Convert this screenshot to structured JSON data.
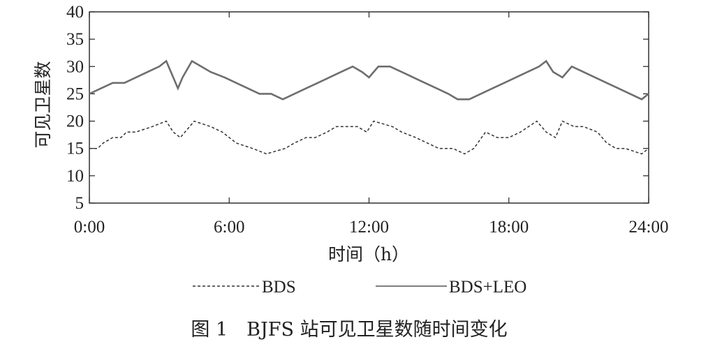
{
  "chart_data": {
    "type": "line",
    "title": "",
    "caption": "图 1　BJFS 站可见卫星数随时间变化",
    "xlabel": "时间（h）",
    "ylabel": "可见卫星数",
    "xlim": [
      0,
      24
    ],
    "ylim": [
      5,
      40
    ],
    "x_ticks": [
      0,
      6,
      12,
      18,
      24
    ],
    "x_tick_labels": [
      "0:00",
      "6:00",
      "12:00",
      "18:00",
      "24:00"
    ],
    "y_ticks": [
      5,
      10,
      15,
      20,
      25,
      30,
      35,
      40
    ],
    "y_tick_labels": [
      "5",
      "10",
      "15",
      "20",
      "25",
      "30",
      "35",
      "40"
    ],
    "grid": false,
    "legend_position": "bottom",
    "series": [
      {
        "name": "BDS",
        "style": "dashed",
        "color": "#333333",
        "x": [
          0,
          0.35,
          0.6,
          1.0,
          1.35,
          1.6,
          2.0,
          2.7,
          3.3,
          3.6,
          3.9,
          4.5,
          5.2,
          5.7,
          6.3,
          7.0,
          7.6,
          8.4,
          8.8,
          9.3,
          9.7,
          10.2,
          10.6,
          11.5,
          11.9,
          12.2,
          13.0,
          13.4,
          14.0,
          14.5,
          15.0,
          15.6,
          16.1,
          16.5,
          17.0,
          17.5,
          18.0,
          18.5,
          19.2,
          19.6,
          20.0,
          20.3,
          20.8,
          21.2,
          21.8,
          22.2,
          22.6,
          23.0,
          23.7,
          24.0
        ],
        "values": [
          15,
          15,
          16,
          17,
          17,
          18,
          18,
          19,
          20,
          18,
          17,
          20,
          19,
          18,
          16,
          15,
          14,
          15,
          16,
          17,
          17,
          18,
          19,
          19,
          18,
          20,
          19,
          18,
          17,
          16,
          15,
          15,
          14,
          15,
          18,
          17,
          17,
          18,
          20,
          18,
          17,
          20,
          19,
          19,
          18,
          16,
          15,
          15,
          14,
          15
        ]
      },
      {
        "name": "BDS+LEO",
        "style": "solid",
        "color": "#6e6e6e",
        "x": [
          0,
          0.5,
          1.0,
          1.5,
          2.0,
          2.5,
          3.0,
          3.3,
          3.6,
          3.8,
          4.0,
          4.4,
          4.8,
          5.2,
          5.8,
          6.3,
          6.8,
          7.3,
          7.8,
          8.3,
          8.8,
          9.3,
          9.8,
          10.3,
          10.8,
          11.3,
          11.7,
          12.0,
          12.4,
          12.9,
          13.4,
          13.9,
          14.4,
          14.9,
          15.4,
          15.8,
          16.3,
          16.8,
          17.3,
          17.8,
          18.3,
          18.8,
          19.3,
          19.6,
          19.9,
          20.3,
          20.7,
          21.2,
          21.7,
          22.2,
          22.7,
          23.2,
          23.7,
          24.0
        ],
        "values": [
          25,
          26,
          27,
          27,
          28,
          29,
          30,
          31,
          28,
          26,
          28,
          31,
          30,
          29,
          28,
          27,
          26,
          25,
          25,
          24,
          25,
          26,
          27,
          28,
          29,
          30,
          29,
          28,
          30,
          30,
          29,
          28,
          27,
          26,
          25,
          24,
          24,
          25,
          26,
          27,
          28,
          29,
          30,
          31,
          29,
          28,
          30,
          29,
          28,
          27,
          26,
          25,
          24,
          25
        ]
      }
    ]
  }
}
